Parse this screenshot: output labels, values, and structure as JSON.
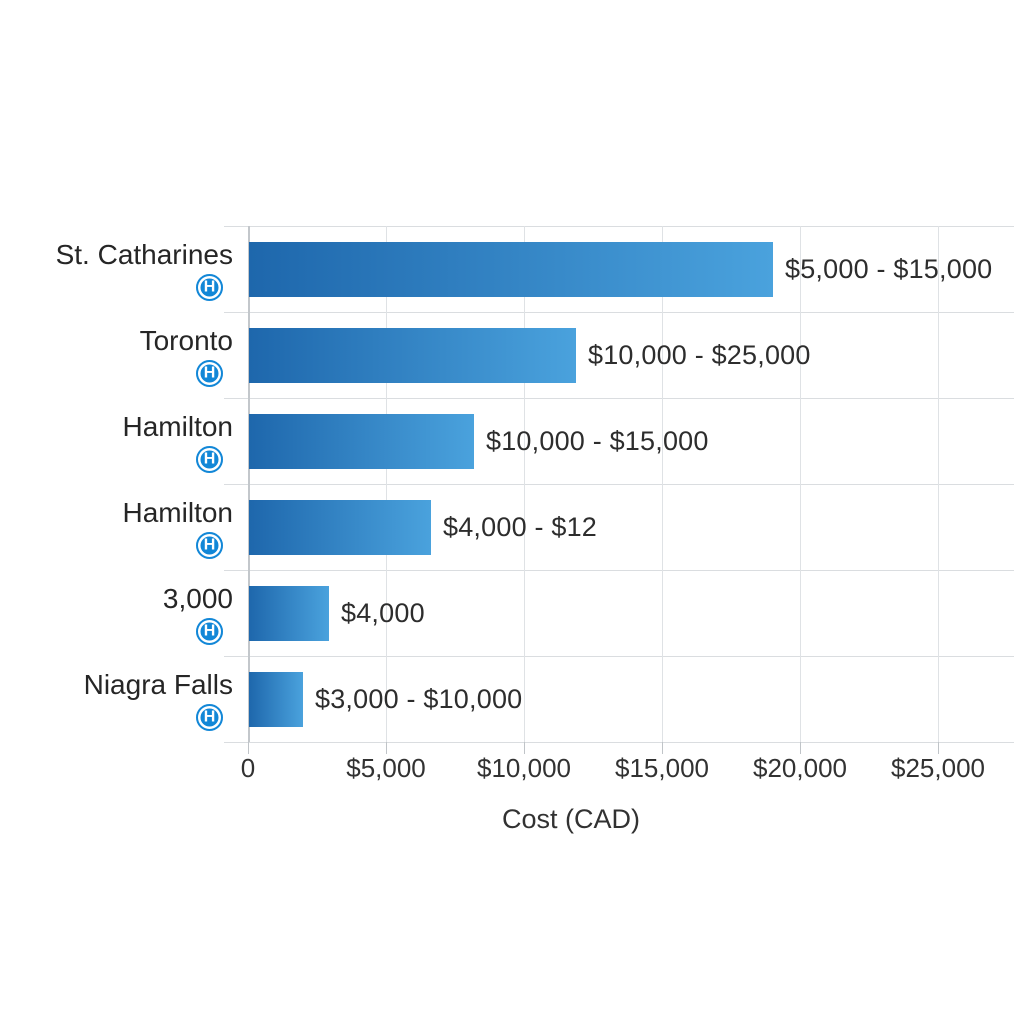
{
  "chart_data": {
    "type": "bar",
    "orientation": "horizontal",
    "title": "",
    "xlabel": "Cost (CAD)",
    "ylabel": "",
    "xlim": [
      0,
      25000
    ],
    "grid": true,
    "legend": "none",
    "bar_gradient": {
      "start": "#1e67ac",
      "end": "#4aa2dd"
    },
    "category_icon": {
      "name": "helipad-h-icon",
      "glyph": "H",
      "color": "#1287d7"
    },
    "x_ticks": [
      {
        "value": 0,
        "label": "0"
      },
      {
        "value": 5000,
        "label": "$5,000"
      },
      {
        "value": 10000,
        "label": "$10,000"
      },
      {
        "value": 15000,
        "label": "$15,000"
      },
      {
        "value": 20000,
        "label": "$20,000"
      },
      {
        "value": 25000,
        "label": "$25,000"
      }
    ],
    "rows": [
      {
        "category": "St. Catharines",
        "bar_value": 19000,
        "value_label": "$5,000 - $15,000"
      },
      {
        "category": "Toronto",
        "bar_value": 11850,
        "value_label": "$10,000 - $25,000"
      },
      {
        "category": "Hamilton",
        "bar_value": 8150,
        "value_label": "$10,000 - $15,000"
      },
      {
        "category": "Hamilton",
        "bar_value": 6600,
        "value_label": "$4,000 - $12"
      },
      {
        "category": "3,000",
        "bar_value": 2900,
        "value_label": "$4,000"
      },
      {
        "category": "Niagra Falls",
        "bar_value": 1950,
        "value_label": "$3,000 - $10,000"
      }
    ]
  }
}
